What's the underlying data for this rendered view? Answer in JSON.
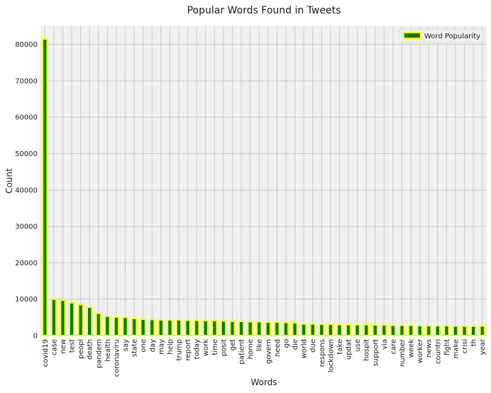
{
  "chart_data": {
    "type": "bar",
    "title": "Popular Words Found in Tweets",
    "xlabel": "Words",
    "ylabel": "Count",
    "ylim": [
      0,
      85000
    ],
    "yticks": [
      0,
      10000,
      20000,
      30000,
      40000,
      50000,
      60000,
      70000,
      80000
    ],
    "grid": true,
    "legend_position": "top-right",
    "colors": {
      "bar_fill": "#008000",
      "bar_edge": "#ffff00",
      "background": "#f0f0f0",
      "grid": "#cbcbcb"
    },
    "categories": [
      "covid19",
      "case",
      "new",
      "test",
      "peopl",
      "death",
      "pandem",
      "health",
      "coronaviru",
      "say",
      "state",
      "one",
      "day",
      "may",
      "help",
      "trump",
      "report",
      "today",
      "work",
      "time",
      "posit",
      "get",
      "patient",
      "home",
      "like",
      "govern",
      "need",
      "go",
      "die",
      "world",
      "due",
      "respons",
      "lockdown",
      "take",
      "updat",
      "use",
      "hospit",
      "support",
      "via",
      "care",
      "number",
      "week",
      "worker",
      "news",
      "countri",
      "fight",
      "make",
      "crisi",
      "th",
      "year"
    ],
    "series": [
      {
        "name": "Word Popularity",
        "values": [
          81500,
          10000,
          9700,
          9000,
          8500,
          7800,
          6100,
          5300,
          5100,
          5000,
          4700,
          4500,
          4400,
          4300,
          4300,
          4300,
          4200,
          4200,
          4100,
          4100,
          4000,
          3900,
          3900,
          3800,
          3800,
          3700,
          3700,
          3600,
          3500,
          3200,
          3200,
          3100,
          3100,
          3000,
          3000,
          3000,
          3000,
          2900,
          2900,
          2800,
          2800,
          2800,
          2700,
          2700,
          2700,
          2700,
          2600,
          2600,
          2600,
          2600
        ]
      }
    ]
  }
}
